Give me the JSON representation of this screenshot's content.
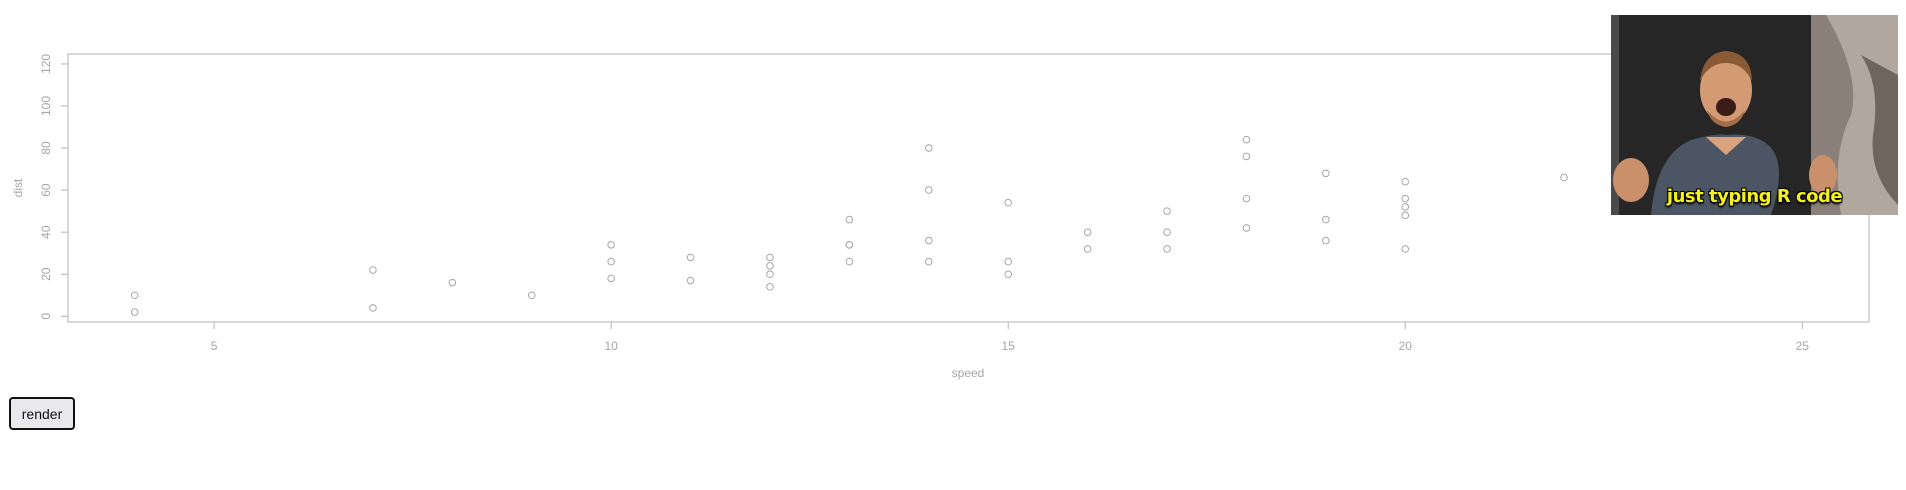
{
  "chart_data": {
    "type": "scatter",
    "xlabel": "speed",
    "ylabel": "dist",
    "xlim": [
      3.16,
      25.84
    ],
    "ylim": [
      -2.72,
      124.72
    ],
    "x_ticks": [
      5,
      10,
      15,
      20,
      25
    ],
    "y_ticks": [
      0,
      20,
      40,
      60,
      80,
      100,
      120
    ],
    "grid": false,
    "points": [
      {
        "x": 4,
        "y": 2
      },
      {
        "x": 4,
        "y": 10
      },
      {
        "x": 7,
        "y": 4
      },
      {
        "x": 7,
        "y": 22
      },
      {
        "x": 8,
        "y": 16
      },
      {
        "x": 9,
        "y": 10
      },
      {
        "x": 10,
        "y": 18
      },
      {
        "x": 10,
        "y": 26
      },
      {
        "x": 10,
        "y": 34
      },
      {
        "x": 11,
        "y": 17
      },
      {
        "x": 11,
        "y": 28
      },
      {
        "x": 12,
        "y": 14
      },
      {
        "x": 12,
        "y": 20
      },
      {
        "x": 12,
        "y": 24
      },
      {
        "x": 12,
        "y": 28
      },
      {
        "x": 13,
        "y": 26
      },
      {
        "x": 13,
        "y": 34
      },
      {
        "x": 13,
        "y": 34
      },
      {
        "x": 13,
        "y": 46
      },
      {
        "x": 14,
        "y": 26
      },
      {
        "x": 14,
        "y": 36
      },
      {
        "x": 14,
        "y": 60
      },
      {
        "x": 14,
        "y": 80
      },
      {
        "x": 15,
        "y": 20
      },
      {
        "x": 15,
        "y": 26
      },
      {
        "x": 15,
        "y": 54
      },
      {
        "x": 16,
        "y": 32
      },
      {
        "x": 16,
        "y": 40
      },
      {
        "x": 17,
        "y": 32
      },
      {
        "x": 17,
        "y": 40
      },
      {
        "x": 17,
        "y": 50
      },
      {
        "x": 18,
        "y": 42
      },
      {
        "x": 18,
        "y": 56
      },
      {
        "x": 18,
        "y": 76
      },
      {
        "x": 18,
        "y": 84
      },
      {
        "x": 19,
        "y": 36
      },
      {
        "x": 19,
        "y": 46
      },
      {
        "x": 19,
        "y": 68
      },
      {
        "x": 20,
        "y": 32
      },
      {
        "x": 20,
        "y": 48
      },
      {
        "x": 20,
        "y": 52
      },
      {
        "x": 20,
        "y": 56
      },
      {
        "x": 20,
        "y": 64
      },
      {
        "x": 22,
        "y": 66
      }
    ],
    "colors": {
      "axis": "#b3b3b3",
      "text": "#a6a6a6",
      "points": "#a6a6a6"
    }
  },
  "controls": {
    "render_label": "render"
  },
  "overlay": {
    "caption": "just typing R code"
  }
}
